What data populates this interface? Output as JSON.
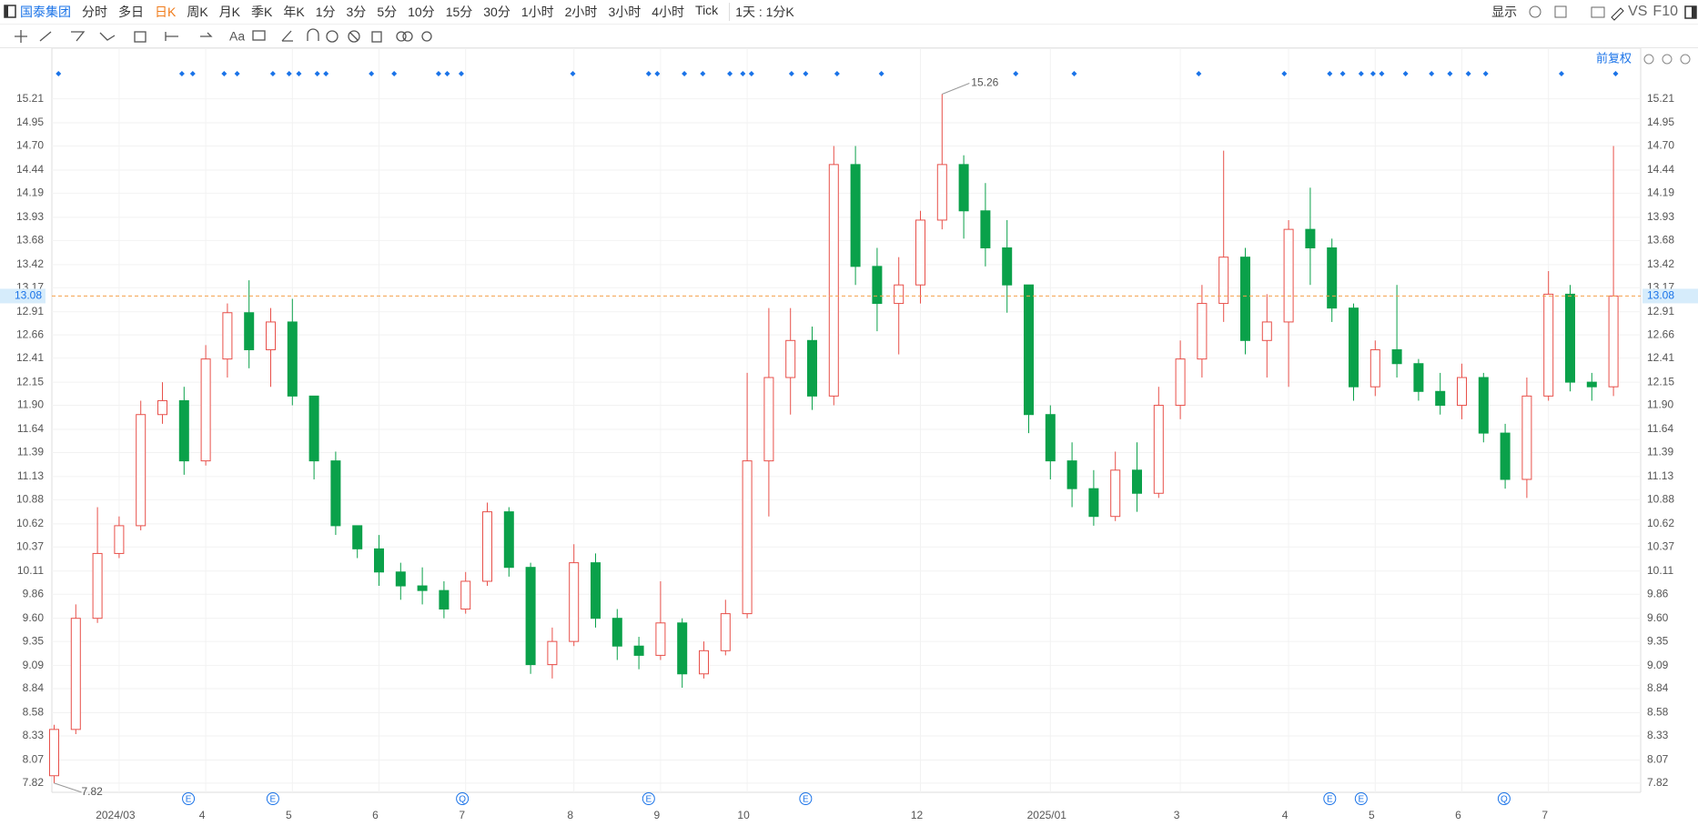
{
  "toolbar": {
    "stock": "国泰集团",
    "periods": [
      "分时",
      "多日",
      "日K",
      "周K",
      "月K",
      "季K",
      "年K",
      "1分",
      "3分",
      "5分",
      "10分",
      "15分",
      "30分",
      "1小时",
      "2小时",
      "3小时",
      "4小时",
      "Tick"
    ],
    "interval": "1天 : 1分K",
    "display": "显示",
    "compare": "VS",
    "f10": "F10",
    "text_tool": "Aa"
  },
  "chart_data": {
    "type": "candlestick",
    "adjust_label": "前复权",
    "categories": [
      null,
      null,
      null,
      "2024/03",
      null,
      null,
      null,
      "4",
      null,
      null,
      null,
      "5",
      null,
      null,
      null,
      "6",
      null,
      null,
      null,
      "7",
      null,
      null,
      null,
      null,
      "8",
      null,
      null,
      null,
      "9",
      null,
      null,
      null,
      "10",
      null,
      null,
      null,
      null,
      null,
      null,
      null,
      "12",
      null,
      null,
      null,
      null,
      null,
      "2025/01",
      null,
      null,
      null,
      null,
      null,
      "3",
      null,
      null,
      null,
      null,
      "4",
      null,
      null,
      null,
      "5",
      null,
      null,
      null,
      "6",
      null,
      null,
      null,
      "7",
      null,
      null,
      null
    ],
    "open": [
      7.9,
      8.4,
      9.6,
      10.3,
      10.6,
      11.8,
      11.95,
      11.3,
      12.4,
      12.9,
      12.5,
      12.8,
      12.0,
      11.3,
      10.6,
      10.35,
      10.1,
      9.95,
      9.9,
      9.7,
      10.0,
      10.75,
      10.15,
      9.1,
      9.35,
      10.2,
      9.6,
      9.3,
      9.2,
      9.55,
      9.0,
      9.25,
      9.65,
      11.3,
      12.2,
      12.6,
      12.0,
      14.5,
      13.4,
      13.0,
      13.2,
      13.9,
      14.5,
      14.0,
      13.6,
      13.2,
      11.8,
      11.3,
      11.0,
      10.7,
      11.2,
      10.95,
      11.9,
      12.4,
      13.0,
      13.5,
      12.6,
      12.8,
      13.8,
      13.6,
      12.95,
      12.1,
      12.5,
      12.35,
      12.05,
      11.9,
      12.2,
      11.6,
      11.1,
      12.0,
      13.1,
      12.15,
      12.1
    ],
    "high": [
      8.45,
      9.75,
      10.8,
      10.7,
      11.95,
      12.15,
      12.1,
      12.55,
      13.0,
      13.25,
      12.95,
      13.05,
      12.0,
      11.4,
      10.6,
      10.5,
      10.2,
      10.15,
      10.0,
      10.1,
      10.85,
      10.8,
      10.2,
      9.5,
      10.4,
      10.3,
      9.7,
      9.4,
      10.0,
      9.6,
      9.35,
      9.8,
      12.25,
      12.95,
      12.95,
      12.75,
      14.7,
      14.7,
      13.6,
      13.5,
      14.0,
      15.26,
      14.6,
      14.3,
      13.9,
      13.2,
      11.9,
      11.5,
      11.2,
      11.4,
      11.5,
      12.1,
      12.6,
      13.2,
      14.65,
      13.6,
      13.1,
      13.9,
      14.25,
      13.7,
      13.0,
      12.6,
      13.2,
      12.4,
      12.25,
      12.35,
      12.25,
      11.7,
      12.2,
      13.35,
      13.2,
      12.25,
      14.7
    ],
    "low": [
      7.82,
      8.35,
      9.55,
      10.25,
      10.55,
      11.7,
      11.15,
      11.25,
      12.2,
      12.3,
      12.1,
      11.9,
      11.1,
      10.5,
      10.25,
      9.95,
      9.8,
      9.75,
      9.6,
      9.65,
      9.95,
      10.05,
      9.0,
      8.95,
      9.3,
      9.5,
      9.15,
      9.05,
      9.15,
      8.85,
      8.95,
      9.2,
      9.6,
      10.7,
      11.8,
      11.85,
      11.9,
      13.2,
      12.7,
      12.45,
      13.0,
      13.8,
      13.7,
      13.4,
      12.9,
      11.6,
      11.1,
      10.8,
      10.6,
      10.65,
      10.75,
      10.9,
      11.75,
      12.2,
      12.8,
      12.45,
      12.2,
      12.1,
      13.2,
      12.8,
      11.95,
      12.0,
      12.2,
      11.95,
      11.8,
      11.75,
      11.5,
      11.0,
      10.9,
      11.95,
      12.05,
      11.95,
      12.0
    ],
    "close": [
      8.4,
      9.6,
      10.3,
      10.6,
      11.8,
      11.95,
      11.3,
      12.4,
      12.9,
      12.5,
      12.8,
      12.0,
      11.3,
      10.6,
      10.35,
      10.1,
      9.95,
      9.9,
      9.7,
      10.0,
      10.75,
      10.15,
      9.1,
      9.35,
      10.2,
      9.6,
      9.3,
      9.2,
      9.55,
      9.0,
      9.25,
      9.65,
      11.3,
      12.2,
      12.6,
      12.0,
      14.5,
      13.4,
      13.0,
      13.2,
      13.9,
      14.5,
      14.0,
      13.6,
      13.2,
      11.8,
      11.3,
      11.0,
      10.7,
      11.2,
      10.95,
      11.9,
      12.4,
      13.0,
      13.5,
      12.6,
      12.8,
      13.8,
      13.6,
      12.95,
      12.1,
      12.5,
      12.35,
      12.05,
      11.9,
      12.2,
      11.6,
      11.1,
      12.0,
      13.1,
      12.15,
      12.1,
      13.08
    ],
    "up_color": "#e8504a",
    "down_color": "#0aa14a",
    "ylim": [
      7.76,
      15.54
    ],
    "yticks": [
      7.82,
      8.07,
      8.33,
      8.58,
      8.84,
      9.09,
      9.35,
      {
        "value": 9.6,
        "label": "9.60"
      },
      9.86,
      10.11,
      10.37,
      10.62,
      10.88,
      11.13,
      11.39,
      11.64,
      {
        "value": 11.9,
        "label": "11.90"
      },
      12.15,
      12.41,
      12.66,
      12.91,
      13.17,
      13.42,
      13.68,
      13.93,
      14.19,
      14.44,
      {
        "value": 14.7,
        "label": "14.70"
      },
      14.95,
      15.21
    ],
    "grid": true,
    "current_price": 13.08,
    "events": [
      "E",
      "E",
      "Q",
      "E",
      "E",
      "E",
      "E",
      "Q"
    ]
  }
}
